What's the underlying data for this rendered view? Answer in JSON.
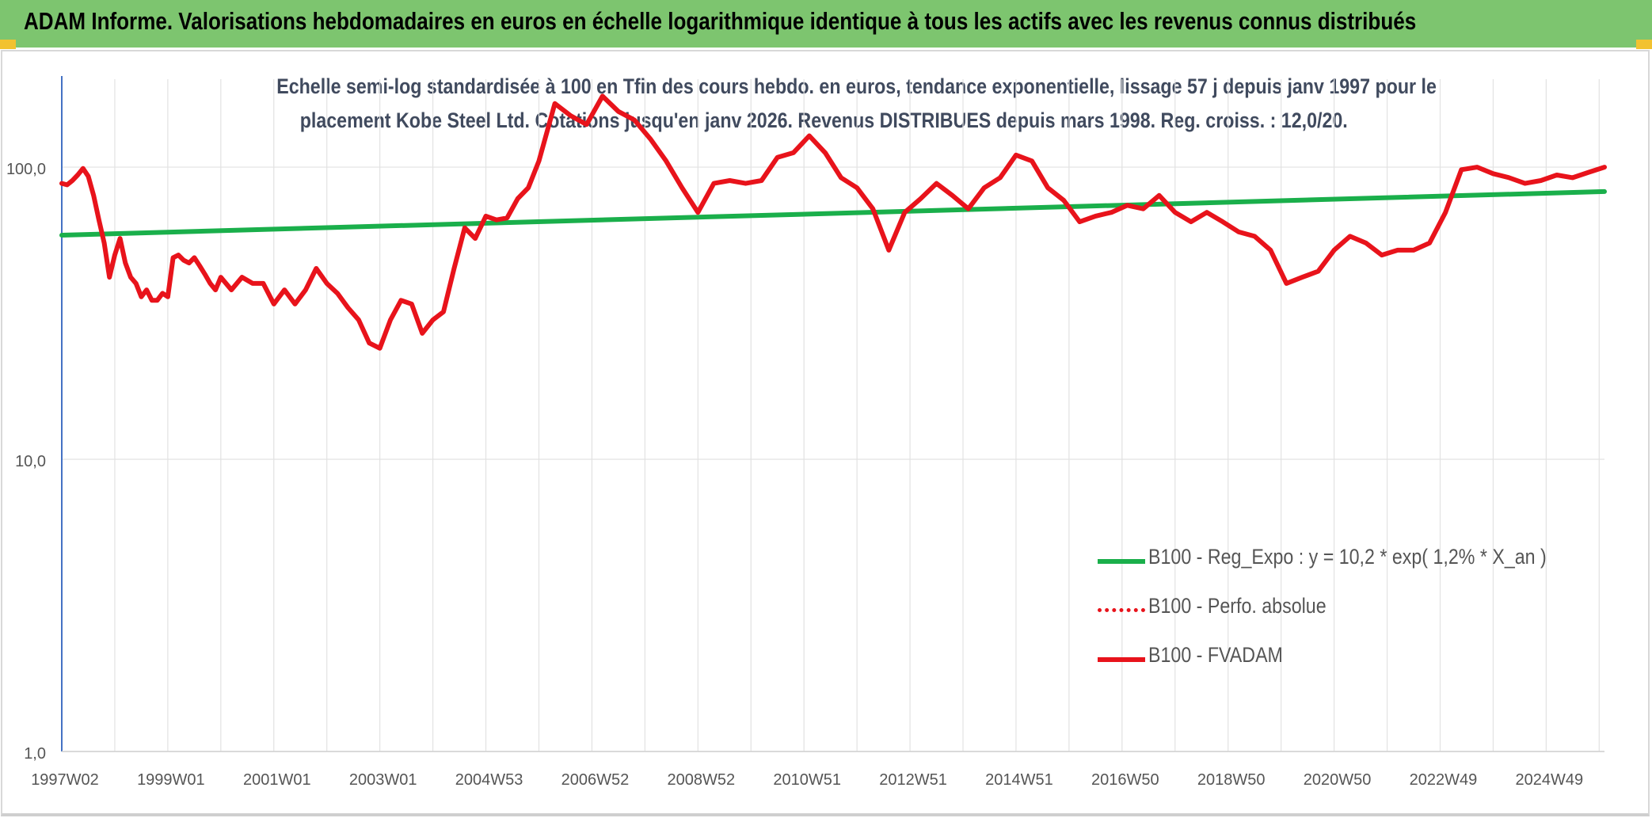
{
  "header": {
    "title": "ADAM Informe. Valorisations hebdomadaires en euros en échelle logarithmique identique à tous les actifs avec les revenus connus distribués"
  },
  "chart_data": {
    "type": "line",
    "title_line1": "Echelle semi-log standardisée à 100 en Tfin des cours hebdo. en euros, tendance exponentielle, lissage 57 j depuis janv 1997 pour le",
    "title_line2": "placement Kobe Steel Ltd. Cotations jusqu'en janv 2026. Revenus DISTRIBUES depuis mars 1998. Reg. croiss. : 12,0/20.",
    "y_scale": "log",
    "ylim": [
      1,
      200
    ],
    "xlim": [
      1997.0,
      2026.1
    ],
    "y_ticks": [
      {
        "value": 1,
        "label": "1,0"
      },
      {
        "value": 10,
        "label": "10,0"
      },
      {
        "value": 100,
        "label": "100,0"
      }
    ],
    "x_ticks": [
      {
        "value": 1997.0,
        "label": "1997W02"
      },
      {
        "value": 1999.0,
        "label": "1999W01"
      },
      {
        "value": 2001.0,
        "label": "2001W01"
      },
      {
        "value": 2003.0,
        "label": "2003W01"
      },
      {
        "value": 2005.0,
        "label": "2004W53"
      },
      {
        "value": 2007.0,
        "label": "2006W52"
      },
      {
        "value": 2009.0,
        "label": "2008W52"
      },
      {
        "value": 2011.0,
        "label": "2010W51"
      },
      {
        "value": 2013.0,
        "label": "2012W51"
      },
      {
        "value": 2015.0,
        "label": "2014W51"
      },
      {
        "value": 2017.0,
        "label": "2016W50"
      },
      {
        "value": 2019.0,
        "label": "2018W50"
      },
      {
        "value": 2021.0,
        "label": "2020W50"
      },
      {
        "value": 2023.0,
        "label": "2022W49"
      },
      {
        "value": 2025.0,
        "label": "2024W49"
      }
    ],
    "grid": "vertical and horizontal",
    "legend_position": "bottom-right",
    "series": [
      {
        "name": "B100 - Reg_Expo : y = 10,2 * exp( 1,2% * X_an )",
        "color": "#1aaf4b",
        "style": "solid",
        "x": [
          1997.0,
          2026.1
        ],
        "values": [
          58.5,
          82.5
        ]
      },
      {
        "name": "B100 - Perfo. absolue",
        "color": "#e8131b",
        "style": "dotted",
        "x": [],
        "values": []
      },
      {
        "name": "B100 - FVADAM",
        "color": "#e8131b",
        "style": "solid",
        "x": [
          1997.0,
          1997.1,
          1997.2,
          1997.3,
          1997.4,
          1997.5,
          1997.6,
          1997.7,
          1997.8,
          1997.9,
          1998.0,
          1998.1,
          1998.2,
          1998.3,
          1998.4,
          1998.5,
          1998.6,
          1998.7,
          1998.8,
          1998.9,
          1999.0,
          1999.1,
          1999.2,
          1999.3,
          1999.4,
          1999.5,
          1999.6,
          1999.7,
          1999.8,
          1999.9,
          2000.0,
          2000.2,
          2000.4,
          2000.6,
          2000.8,
          2001.0,
          2001.2,
          2001.4,
          2001.6,
          2001.8,
          2002.0,
          2002.2,
          2002.4,
          2002.6,
          2002.8,
          2003.0,
          2003.2,
          2003.4,
          2003.6,
          2003.8,
          2004.0,
          2004.2,
          2004.4,
          2004.6,
          2004.8,
          2005.0,
          2005.2,
          2005.4,
          2005.6,
          2005.8,
          2006.0,
          2006.3,
          2006.6,
          2006.9,
          2007.2,
          2007.5,
          2007.8,
          2008.1,
          2008.4,
          2008.7,
          2009.0,
          2009.3,
          2009.6,
          2009.9,
          2010.2,
          2010.5,
          2010.8,
          2011.1,
          2011.4,
          2011.7,
          2012.0,
          2012.3,
          2012.6,
          2012.9,
          2013.2,
          2013.5,
          2013.8,
          2014.1,
          2014.4,
          2014.7,
          2015.0,
          2015.3,
          2015.6,
          2015.9,
          2016.2,
          2016.5,
          2016.8,
          2017.1,
          2017.4,
          2017.7,
          2018.0,
          2018.3,
          2018.6,
          2018.9,
          2019.2,
          2019.5,
          2019.8,
          2020.1,
          2020.4,
          2020.7,
          2021.0,
          2021.3,
          2021.6,
          2021.9,
          2022.2,
          2022.5,
          2022.8,
          2023.1,
          2023.4,
          2023.7,
          2024.0,
          2024.3,
          2024.6,
          2024.9,
          2025.2,
          2025.5,
          2025.8,
          2026.1
        ],
        "values": [
          88,
          87,
          90,
          94,
          99,
          93,
          80,
          66,
          55,
          42,
          50,
          57,
          47,
          42,
          40,
          36,
          38,
          35,
          35,
          37,
          36,
          49,
          50,
          48,
          47,
          49,
          46,
          43,
          40,
          38,
          42,
          38,
          42,
          40,
          40,
          34,
          38,
          34,
          38,
          45,
          40,
          37,
          33,
          30,
          25,
          24,
          30,
          35,
          34,
          27,
          30,
          32,
          45,
          62,
          57,
          68,
          66,
          67,
          78,
          85,
          105,
          165,
          150,
          140,
          175,
          155,
          145,
          125,
          105,
          85,
          70,
          88,
          90,
          88,
          90,
          108,
          112,
          128,
          112,
          92,
          85,
          72,
          52,
          70,
          78,
          88,
          80,
          72,
          85,
          92,
          110,
          105,
          85,
          77,
          65,
          68,
          70,
          74,
          72,
          80,
          70,
          65,
          70,
          65,
          60,
          58,
          52,
          40,
          42,
          44,
          52,
          58,
          55,
          50,
          52,
          52,
          55,
          70,
          98,
          100,
          95,
          92,
          88,
          90,
          94,
          92,
          96,
          100
        ]
      }
    ]
  }
}
